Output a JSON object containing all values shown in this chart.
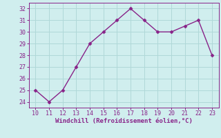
{
  "x": [
    10,
    11,
    12,
    13,
    14,
    15,
    16,
    17,
    18,
    19,
    20,
    21,
    22,
    23
  ],
  "y": [
    25,
    24,
    25,
    27,
    29,
    30,
    31,
    32,
    31,
    30,
    30,
    30.5,
    31,
    28
  ],
  "line_color": "#882288",
  "marker": "D",
  "marker_size": 2.5,
  "background_color": "#d0eeee",
  "grid_color": "#b0d8d8",
  "xlabel": "Windchill (Refroidissement éolien,°C)",
  "xlabel_color": "#882288",
  "tick_color": "#882288",
  "spine_color": "#882288",
  "xlim": [
    9.5,
    23.5
  ],
  "ylim": [
    23.5,
    32.5
  ],
  "xticks": [
    10,
    11,
    12,
    13,
    14,
    15,
    16,
    17,
    18,
    19,
    20,
    21,
    22,
    23
  ],
  "yticks": [
    24,
    25,
    26,
    27,
    28,
    29,
    30,
    31,
    32
  ],
  "tick_fontsize": 6,
  "xlabel_fontsize": 6.5,
  "figsize": [
    3.2,
    2.0
  ],
  "dpi": 100
}
